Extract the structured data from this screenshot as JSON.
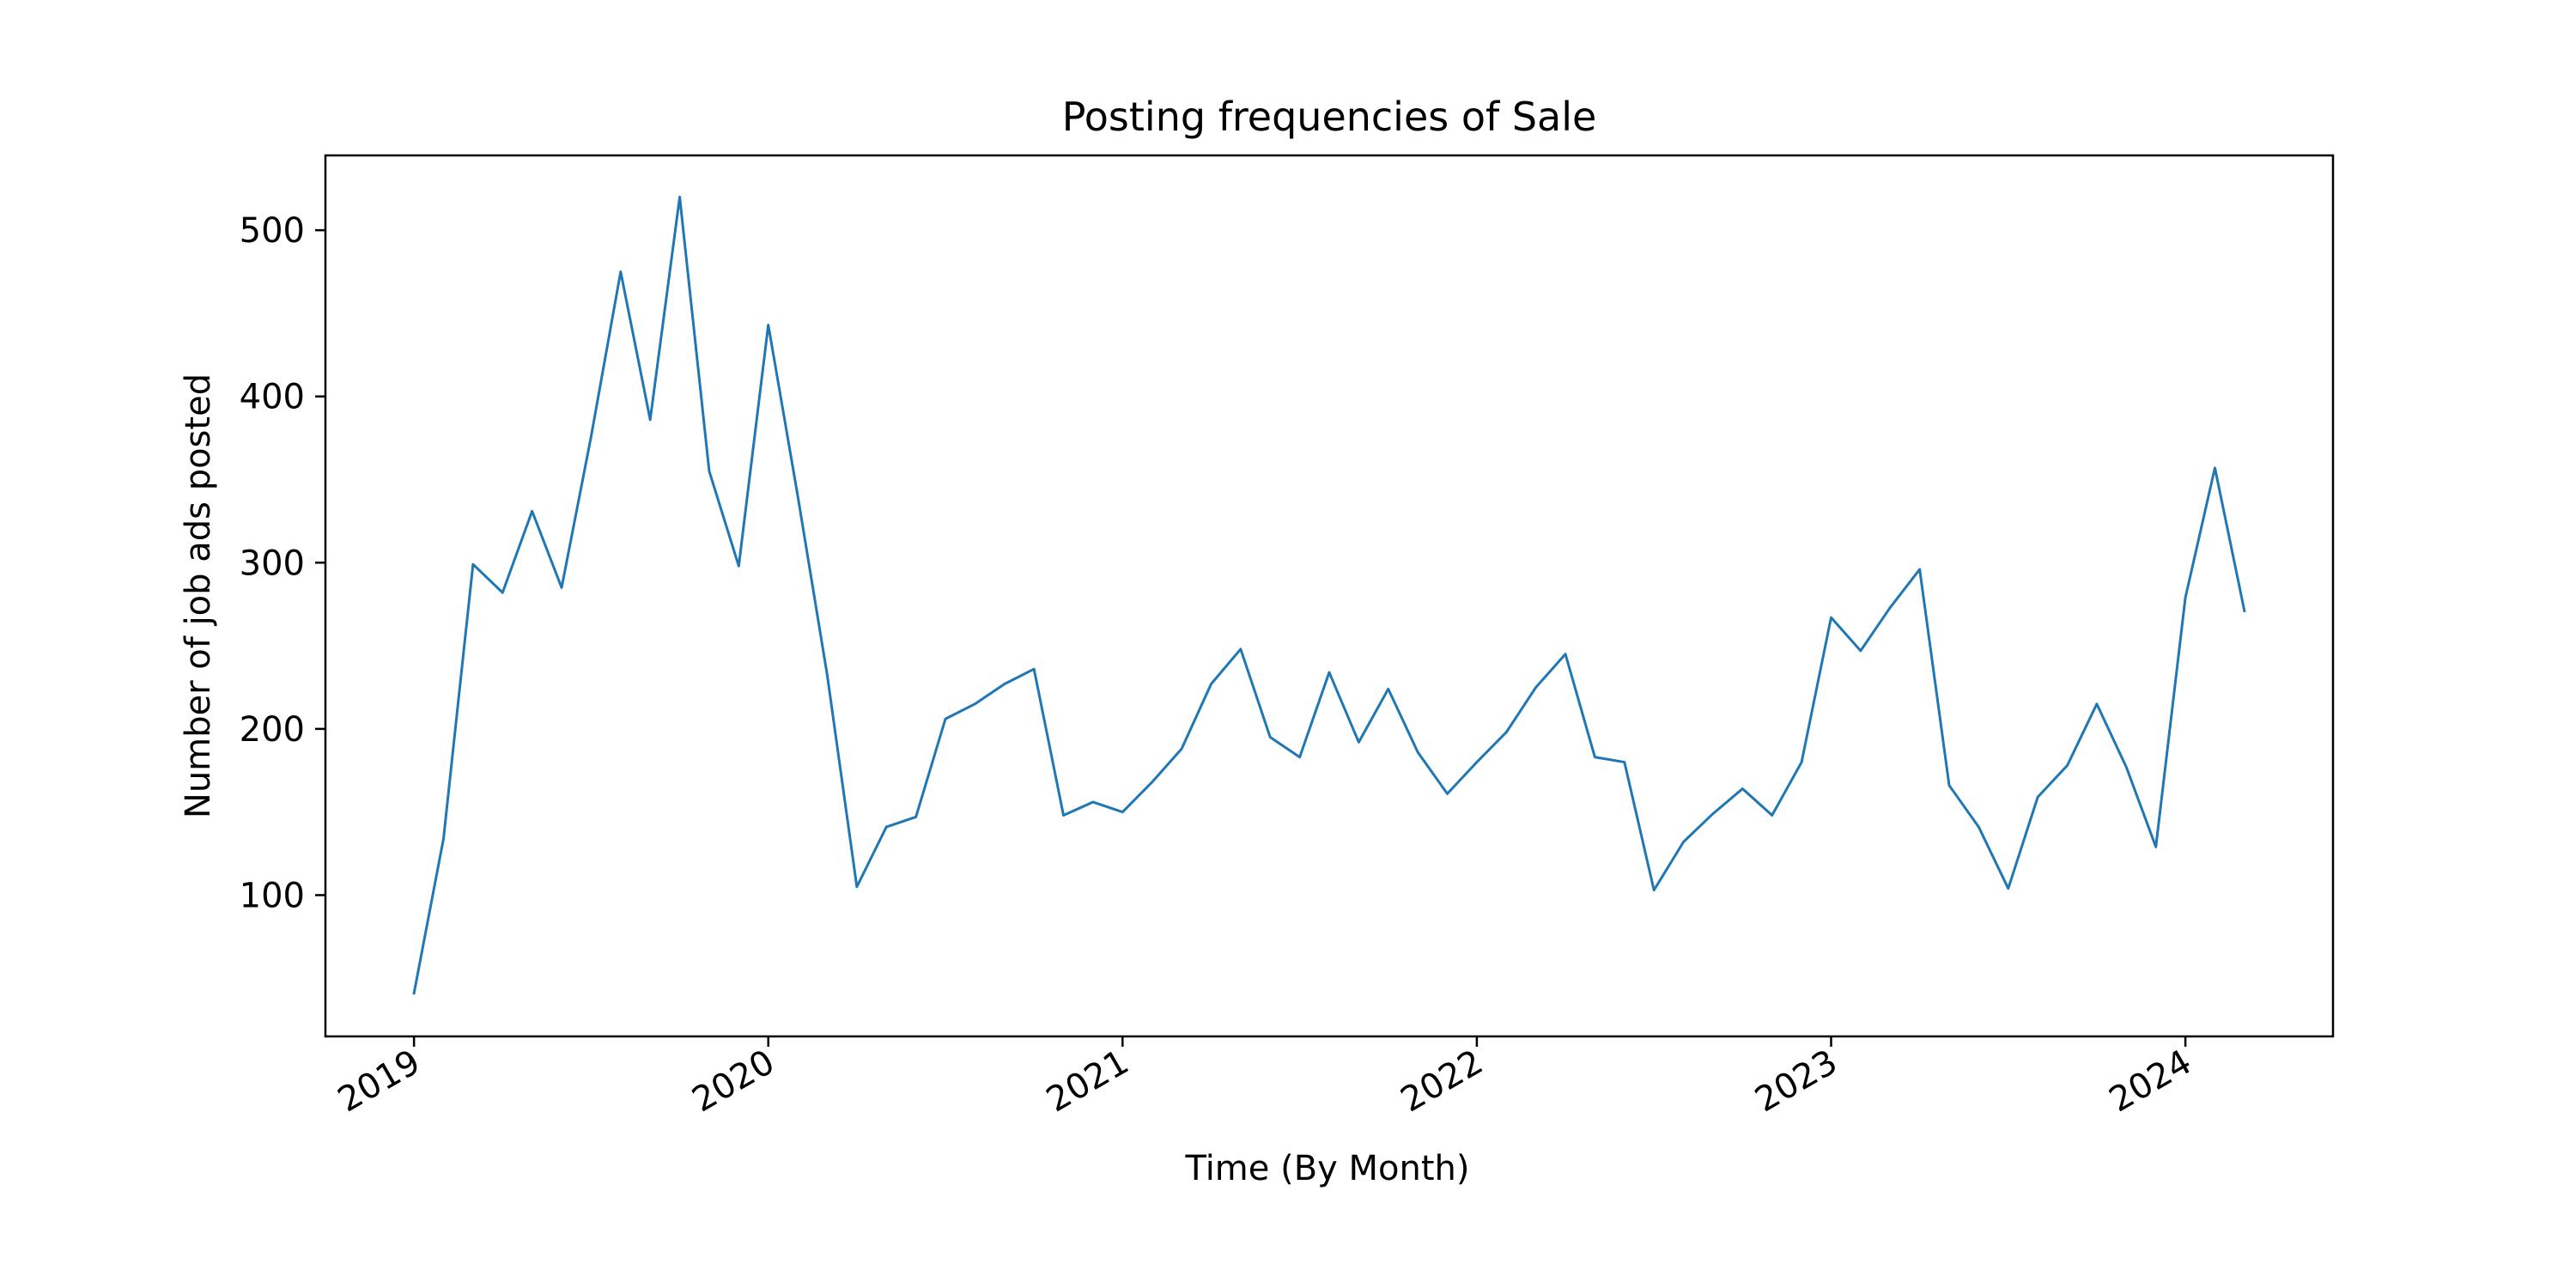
{
  "chart_data": {
    "type": "line",
    "title": "Posting frequencies of Sale",
    "xlabel": "Time (By Month)",
    "ylabel": "Number of job ads posted",
    "x_tick_labels": [
      "2019",
      "2020",
      "2021",
      "2022",
      "2023",
      "2024"
    ],
    "y_tick_labels": [
      "100",
      "200",
      "300",
      "400",
      "500"
    ],
    "ylim": [
      15,
      545
    ],
    "xlim": [
      "2018-10",
      "2024-06"
    ],
    "grid": false,
    "line_color": "#1f77b4",
    "series": [
      {
        "x": [
          "2019-01",
          "2019-02",
          "2019-03",
          "2019-04",
          "2019-05",
          "2019-06",
          "2019-07",
          "2019-08",
          "2019-09",
          "2019-10",
          "2019-11",
          "2019-12",
          "2020-01",
          "2020-02",
          "2020-03",
          "2020-04",
          "2020-05",
          "2020-06",
          "2020-07",
          "2020-08",
          "2020-09",
          "2020-10",
          "2020-11",
          "2020-12",
          "2021-01",
          "2021-02",
          "2021-03",
          "2021-04",
          "2021-05",
          "2021-06",
          "2021-07",
          "2021-08",
          "2021-09",
          "2021-10",
          "2021-11",
          "2021-12",
          "2022-01",
          "2022-02",
          "2022-03",
          "2022-04",
          "2022-05",
          "2022-06",
          "2022-07",
          "2022-08",
          "2022-09",
          "2022-10",
          "2022-11",
          "2022-12",
          "2023-01",
          "2023-02",
          "2023-03",
          "2023-04",
          "2023-05",
          "2023-06",
          "2023-07",
          "2023-08",
          "2023-09",
          "2023-10",
          "2023-11",
          "2023-12",
          "2024-01",
          "2024-02",
          "2024-03"
        ],
        "values": [
          41,
          134,
          299,
          282,
          331,
          285,
          376,
          475,
          386,
          520,
          355,
          298,
          443,
          340,
          232,
          105,
          141,
          147,
          206,
          215,
          227,
          236,
          148,
          156,
          150,
          168,
          188,
          227,
          248,
          195,
          183,
          234,
          192,
          224,
          186,
          161,
          180,
          198,
          225,
          245,
          183,
          180,
          103,
          132,
          149,
          164,
          148,
          180,
          267,
          247,
          273,
          296,
          166,
          141,
          104,
          159,
          178,
          215,
          177,
          129,
          279,
          357,
          271
        ]
      }
    ]
  }
}
